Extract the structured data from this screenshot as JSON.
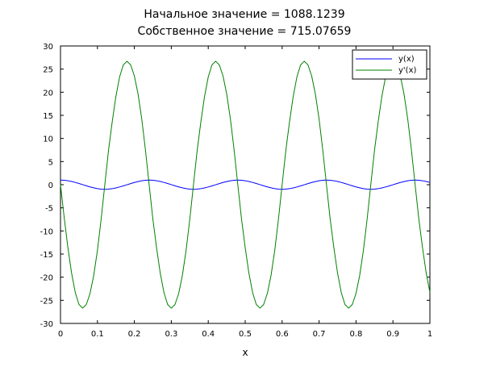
{
  "figure": {
    "title_line1": "Начальное значение =  1088.1239",
    "title_line2": "Собственное значение = 715.07659"
  },
  "chart_data": {
    "type": "line",
    "xlabel": "x",
    "ylabel": "",
    "xlim": [
      0,
      1
    ],
    "ylim": [
      -30,
      30
    ],
    "x_ticks": [
      0,
      0.1,
      0.2,
      0.3,
      0.4,
      0.5,
      0.6,
      0.7,
      0.8,
      0.9,
      1
    ],
    "x_tick_labels": [
      "0",
      "0.1",
      "0.2",
      "0.3",
      "0.4",
      "0.5",
      "0.6",
      "0.7",
      "0.8",
      "0.9",
      "1"
    ],
    "y_ticks": [
      -30,
      -25,
      -20,
      -15,
      -10,
      -5,
      0,
      5,
      10,
      15,
      20,
      25,
      30
    ],
    "y_tick_labels": [
      "-30",
      "-25",
      "-20",
      "-15",
      "-10",
      "-5",
      "0",
      "5",
      "10",
      "15",
      "20",
      "25",
      "30"
    ],
    "grid": false,
    "legend_position": "top-right",
    "x": [
      0.0,
      0.01,
      0.02,
      0.03,
      0.04,
      0.05,
      0.06,
      0.07,
      0.08,
      0.09,
      0.1,
      0.11,
      0.12,
      0.13,
      0.14,
      0.15,
      0.16,
      0.17,
      0.18,
      0.19,
      0.2,
      0.21,
      0.22,
      0.23,
      0.24,
      0.25,
      0.26,
      0.27,
      0.28,
      0.29,
      0.3,
      0.31,
      0.32,
      0.33,
      0.34,
      0.35,
      0.36,
      0.37,
      0.38,
      0.39,
      0.4,
      0.41,
      0.42,
      0.43,
      0.44,
      0.45,
      0.46,
      0.47,
      0.48,
      0.49,
      0.5,
      0.51,
      0.52,
      0.53,
      0.54,
      0.55,
      0.56,
      0.57,
      0.58,
      0.59,
      0.6,
      0.61,
      0.62,
      0.63,
      0.64,
      0.65,
      0.66,
      0.67,
      0.68,
      0.69,
      0.7,
      0.71,
      0.72,
      0.73,
      0.74,
      0.75,
      0.76,
      0.77,
      0.78,
      0.79,
      0.8,
      0.81,
      0.82,
      0.83,
      0.84,
      0.85,
      0.86,
      0.87,
      0.88,
      0.89,
      0.9,
      0.91,
      0.92,
      0.93,
      0.94,
      0.95,
      0.96,
      0.97,
      0.98,
      0.99,
      1.0
    ],
    "series": [
      {
        "name": "y(x)",
        "color": "#0000ff",
        "values": [
          1.0,
          0.964,
          0.86,
          0.698,
          0.491,
          0.256,
          0.01,
          -0.237,
          -0.473,
          -0.682,
          -0.849,
          -0.96,
          -1.0,
          -0.965,
          -0.86,
          -0.699,
          -0.491,
          -0.256,
          -0.01,
          0.237,
          0.473,
          0.682,
          0.849,
          0.96,
          1.0,
          0.965,
          0.86,
          0.698,
          0.491,
          0.256,
          0.01,
          -0.237,
          -0.473,
          -0.682,
          -0.849,
          -0.96,
          -1.0,
          -0.965,
          -0.86,
          -0.699,
          -0.491,
          -0.256,
          -0.01,
          0.237,
          0.473,
          0.682,
          0.849,
          0.96,
          1.0,
          0.965,
          0.86,
          0.698,
          0.491,
          0.256,
          0.01,
          -0.237,
          -0.473,
          -0.682,
          -0.849,
          -0.96,
          -1.0,
          -0.965,
          -0.86,
          -0.699,
          -0.491,
          -0.256,
          -0.01,
          0.237,
          0.473,
          0.682,
          0.849,
          0.96,
          1.0,
          0.965,
          0.86,
          0.698,
          0.491,
          0.256,
          0.01,
          -0.237,
          -0.473,
          -0.682,
          -0.849,
          -0.96,
          -1.0,
          -0.965,
          -0.86,
          -0.699,
          -0.491,
          -0.256,
          -0.01,
          0.237,
          0.473,
          0.682,
          0.849,
          0.96,
          1.0,
          0.965,
          0.86,
          0.698,
          0.491
        ]
      },
      {
        "name": "y'(x)",
        "color": "#008000",
        "values": [
          0.0,
          -7.1,
          -13.6,
          -19.1,
          -23.3,
          -25.9,
          -26.7,
          -25.9,
          -23.5,
          -19.6,
          -14.2,
          -7.5,
          0.0,
          7.4,
          13.6,
          19.1,
          23.3,
          25.9,
          26.7,
          25.9,
          23.5,
          19.6,
          14.2,
          7.5,
          0.0,
          -7.4,
          -13.6,
          -19.1,
          -23.3,
          -25.9,
          -26.7,
          -25.9,
          -23.5,
          -19.6,
          -14.2,
          -7.5,
          0.0,
          7.4,
          13.6,
          19.1,
          23.3,
          25.9,
          26.7,
          25.9,
          23.5,
          19.6,
          14.2,
          7.5,
          0.0,
          -7.4,
          -13.6,
          -19.1,
          -23.3,
          -25.9,
          -26.7,
          -25.9,
          -23.5,
          -19.6,
          -14.2,
          -7.5,
          0.0,
          7.4,
          13.6,
          19.1,
          23.3,
          25.9,
          26.7,
          25.9,
          23.5,
          19.6,
          14.2,
          7.5,
          0.0,
          -7.4,
          -13.6,
          -19.1,
          -23.3,
          -25.9,
          -26.7,
          -25.9,
          -23.5,
          -19.6,
          -14.2,
          -7.5,
          0.0,
          7.4,
          13.6,
          19.1,
          23.3,
          25.9,
          26.7,
          25.9,
          23.5,
          19.6,
          14.2,
          7.5,
          0.0,
          -7.4,
          -13.6,
          -19.1,
          -23.3
        ]
      }
    ]
  }
}
